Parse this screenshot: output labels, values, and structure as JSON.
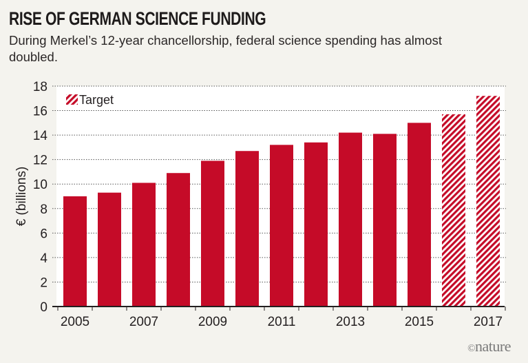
{
  "chart_data": {
    "type": "bar",
    "title": "RISE OF GERMAN SCIENCE FUNDING",
    "subtitle": "During Merkel’s 12-year chancellorship, federal science spending has almost doubled.",
    "xlabel": "",
    "ylabel": "€ (billions)",
    "ylim": [
      0,
      18
    ],
    "yticks": [
      0,
      2,
      4,
      6,
      8,
      10,
      12,
      14,
      16,
      18
    ],
    "xtick_labels": [
      "2005",
      "2007",
      "2009",
      "2011",
      "2013",
      "2015",
      "2017"
    ],
    "grid": true,
    "categories": [
      "2005",
      "2006",
      "2007",
      "2008",
      "2009",
      "2010",
      "2011",
      "2012",
      "2013",
      "2014",
      "2015",
      "2016",
      "2017"
    ],
    "values": [
      9.0,
      9.3,
      10.1,
      10.9,
      11.9,
      12.7,
      13.2,
      13.4,
      14.2,
      14.1,
      15.0,
      15.7,
      17.2
    ],
    "target": [
      false,
      false,
      false,
      false,
      false,
      false,
      false,
      false,
      false,
      false,
      false,
      true,
      true
    ],
    "legend": {
      "entries": [
        "Target"
      ],
      "placement": "top-left"
    },
    "colors": {
      "bar": "#c50b28",
      "background": "#f4f3ee",
      "plot": "#ffffff"
    }
  },
  "credit": {
    "symbol": "©",
    "text": "nature"
  }
}
